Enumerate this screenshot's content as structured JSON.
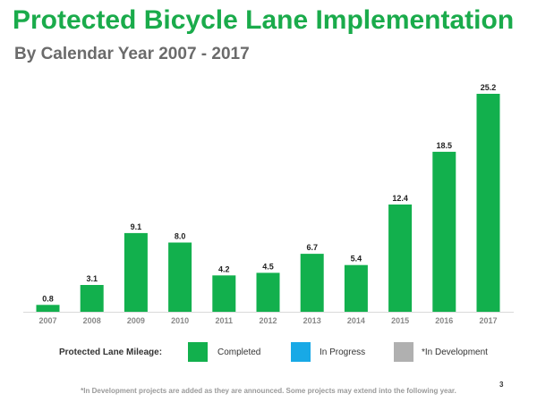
{
  "slide": {
    "page_number": "3",
    "footnote": "*In Development projects are added as they are announced. Some projects may extend into the following year."
  },
  "legend": {
    "lead": "Protected Lane Mileage:",
    "items": [
      {
        "label": "Completed",
        "color": "#12b04d"
      },
      {
        "label": "In Progress",
        "color": "#18a9e6"
      },
      {
        "label": "*In Development",
        "color": "#b0b0b0"
      }
    ]
  },
  "chart_data": {
    "type": "bar",
    "title": "Protected Bicycle Lane Implementation",
    "subtitle": "By Calendar Year 2007 - 2017",
    "categories": [
      "2007",
      "2008",
      "2009",
      "2010",
      "2011",
      "2012",
      "2013",
      "2014",
      "2015",
      "2016",
      "2017"
    ],
    "series": [
      {
        "name": "Completed",
        "color": "#12b04d",
        "values": [
          0.8,
          3.1,
          9.1,
          8.0,
          4.2,
          4.5,
          6.7,
          5.4,
          12.4,
          18.5,
          25.2
        ],
        "labels": [
          "0.8",
          "3.1",
          "9.1",
          "8.0",
          "4.2",
          "4.5",
          "6.7",
          "5.4",
          "12.4",
          "18.5",
          "25.2"
        ]
      }
    ],
    "ylim": [
      0,
      25.2
    ],
    "grid": false,
    "legend_position": "bottom"
  }
}
